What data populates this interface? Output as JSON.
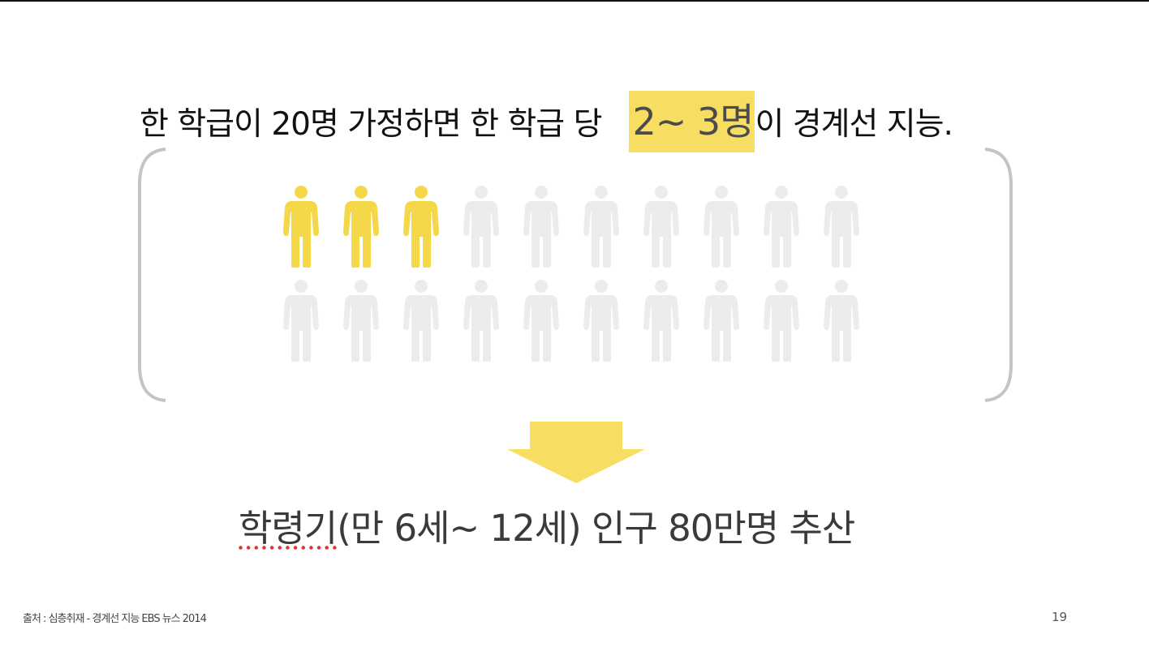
{
  "headline": {
    "prefix": "한 학급이 20명 가정하면 한 학급 당",
    "highlight": "2~ 3명",
    "suffix": "이 경계선 지능."
  },
  "people_grid": {
    "rows": 2,
    "columns": 10,
    "highlighted_count": 3,
    "highlight_color": "#f5d84a",
    "base_color": "#ececec",
    "icon": "person-icon"
  },
  "bottom_text": {
    "underlined": "학령기",
    "rest": "(만 6세~ 12세) 인구 80만명 추산"
  },
  "colors": {
    "accent": "#f7dd62",
    "bracket": "#c4c4c4",
    "arrow": "#f7dd62"
  },
  "footer": {
    "source": "출처 : 심층취재 - 경계선 지능 EBS 뉴스 2014",
    "page_number": "19"
  }
}
